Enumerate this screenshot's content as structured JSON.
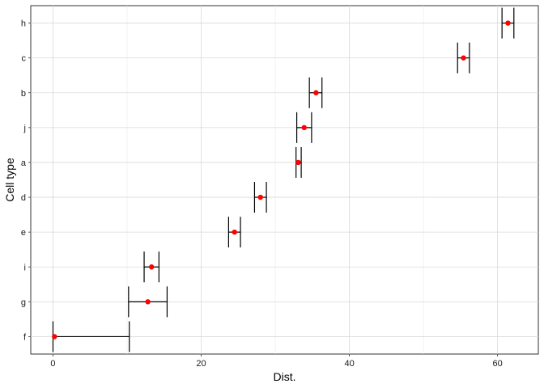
{
  "chart_data": {
    "type": "scatter",
    "title": "",
    "xlabel": "Dist.",
    "ylabel": "Cell type",
    "xlim": [
      -3,
      65.5
    ],
    "x_ticks": [
      0,
      20,
      40,
      60
    ],
    "x_minor_ticks": [
      10,
      30,
      50
    ],
    "categories": [
      "f",
      "g",
      "i",
      "e",
      "d",
      "a",
      "j",
      "b",
      "c",
      "h"
    ],
    "points": [
      {
        "category": "f",
        "x": 0.2,
        "xmin": 0.0,
        "xmax": 10.3
      },
      {
        "category": "g",
        "x": 12.8,
        "xmin": 10.2,
        "xmax": 15.4
      },
      {
        "category": "i",
        "x": 13.3,
        "xmin": 12.3,
        "xmax": 14.3
      },
      {
        "category": "e",
        "x": 24.5,
        "xmin": 23.7,
        "xmax": 25.3
      },
      {
        "category": "d",
        "x": 28.0,
        "xmin": 27.2,
        "xmax": 28.8
      },
      {
        "category": "a",
        "x": 33.1,
        "xmin": 32.8,
        "xmax": 33.5
      },
      {
        "category": "j",
        "x": 33.9,
        "xmin": 32.9,
        "xmax": 34.9
      },
      {
        "category": "b",
        "x": 35.5,
        "xmin": 34.6,
        "xmax": 36.3
      },
      {
        "category": "c",
        "x": 55.4,
        "xmin": 54.6,
        "xmax": 56.2
      },
      {
        "category": "h",
        "x": 61.4,
        "xmin": 60.6,
        "xmax": 62.2
      }
    ],
    "point_color": "#ff0000",
    "errorbar_color": "#000000",
    "grid": true,
    "legend": "none"
  }
}
